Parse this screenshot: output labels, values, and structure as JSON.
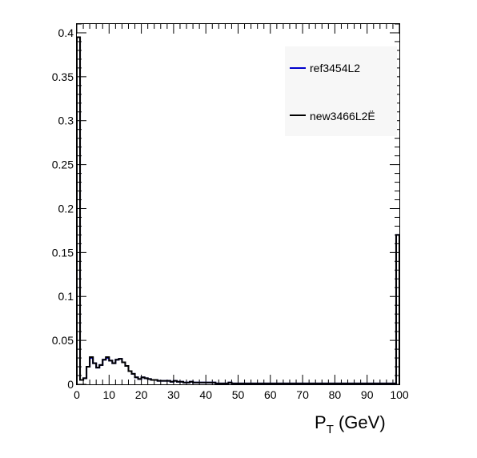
{
  "chart_data": {
    "type": "histogram-step",
    "title": "",
    "xlabel": {
      "main": "P",
      "sub": "T",
      "unit": " (GeV)"
    },
    "ylabel": "",
    "xlim": [
      0,
      100
    ],
    "ylim": [
      0,
      0.41
    ],
    "grid": false,
    "x_major_ticks": [
      0,
      10,
      20,
      30,
      40,
      50,
      60,
      70,
      80,
      90,
      100
    ],
    "x_tick_labels": [
      "0",
      "10",
      "20",
      "30",
      "40",
      "50",
      "60",
      "70",
      "80",
      "90",
      "100"
    ],
    "y_major_ticks": [
      0,
      0.05,
      0.1,
      0.15,
      0.2,
      0.25,
      0.3,
      0.35,
      0.4
    ],
    "y_tick_labels": [
      "0",
      "0.05",
      "0.1",
      "0.15",
      "0.2",
      "0.25",
      "0.3",
      "0.35",
      "0.4"
    ],
    "legend_position": "top-right",
    "series": [
      {
        "name": "ref3454L2",
        "color": "#0000cc",
        "bin_width": 1,
        "values": [
          0.395,
          0.005,
          0.007,
          0.02,
          0.03,
          0.024,
          0.019,
          0.022,
          0.028,
          0.03,
          0.027,
          0.024,
          0.028,
          0.029,
          0.025,
          0.021,
          0.015,
          0.012,
          0.008,
          0.006,
          0.008,
          0.007,
          0.006,
          0.005,
          0.005,
          0.004,
          0.004,
          0.004,
          0.004,
          0.003,
          0.004,
          0.003,
          0.003,
          0.002,
          0.002,
          0.003,
          0.002,
          0.002,
          0.002,
          0.002,
          0.002,
          0.002,
          0.002,
          0.001,
          0.001,
          0.001,
          0.001,
          0.002,
          0.001,
          0.001,
          0.001,
          0.001,
          0.001,
          0.001,
          0.001,
          0.001,
          0.001,
          0.001,
          0.001,
          0.001,
          0.001,
          0.001,
          0.001,
          0.001,
          0.001,
          0.001,
          0.001,
          0.001,
          0.001,
          0.001,
          0.001,
          0.001,
          0.001,
          0.001,
          0.001,
          0.001,
          0.001,
          0.001,
          0.001,
          0.001,
          0.001,
          0.001,
          0.001,
          0.001,
          0.001,
          0.001,
          0.001,
          0.001,
          0.001,
          0.001,
          0.001,
          0.001,
          0.001,
          0.001,
          0.001,
          0.001,
          0.001,
          0.001,
          0.001,
          0.17
        ]
      },
      {
        "name": "new3466L2Ë",
        "color": "#000000",
        "bin_width": 1,
        "values": [
          0.395,
          0.005,
          0.007,
          0.02,
          0.031,
          0.024,
          0.019,
          0.022,
          0.028,
          0.031,
          0.027,
          0.024,
          0.028,
          0.029,
          0.025,
          0.021,
          0.015,
          0.012,
          0.008,
          0.006,
          0.008,
          0.007,
          0.006,
          0.005,
          0.005,
          0.004,
          0.004,
          0.004,
          0.004,
          0.003,
          0.004,
          0.003,
          0.003,
          0.002,
          0.002,
          0.003,
          0.002,
          0.002,
          0.002,
          0.002,
          0.002,
          0.002,
          0.002,
          0.001,
          0.001,
          0.001,
          0.001,
          0.002,
          0.001,
          0.001,
          0.001,
          0.001,
          0.001,
          0.001,
          0.001,
          0.001,
          0.001,
          0.001,
          0.001,
          0.001,
          0.001,
          0.001,
          0.001,
          0.001,
          0.001,
          0.001,
          0.001,
          0.001,
          0.001,
          0.001,
          0.001,
          0.001,
          0.001,
          0.001,
          0.001,
          0.001,
          0.001,
          0.001,
          0.001,
          0.001,
          0.001,
          0.001,
          0.001,
          0.001,
          0.001,
          0.001,
          0.001,
          0.001,
          0.001,
          0.001,
          0.001,
          0.001,
          0.001,
          0.001,
          0.001,
          0.001,
          0.001,
          0.001,
          0.001,
          0.17
        ]
      }
    ]
  }
}
